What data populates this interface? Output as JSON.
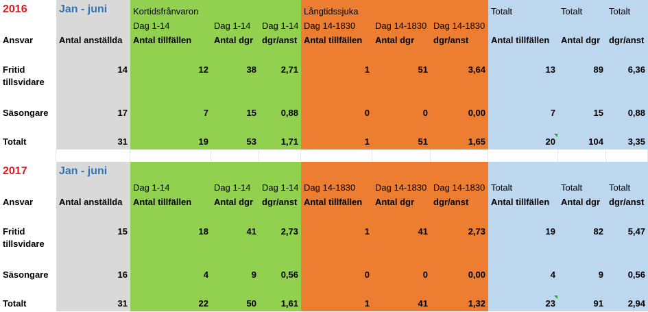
{
  "sections": [
    {
      "year": "2016",
      "period": "Jan - juni",
      "group_headers": {
        "short": "Kortidsfrånvaron",
        "long": "Långtidssjuka",
        "total1": "Totalt",
        "total2": "Totalt",
        "total3": "Totalt"
      },
      "sub_headers": [
        "Dag 1-14",
        "Dag 1-14",
        "Dag 1-14",
        "Dag 14-1830",
        "Dag 14-1830",
        "Dag 14-1830"
      ],
      "columns": [
        "Ansvar",
        "Antal anställda",
        "Antal tillfällen",
        "Antal dgr",
        "dgr/anst",
        "Antal tillfällen",
        "Antal dgr",
        "dgr/anst",
        "Antal tillfällen",
        "Antal dgr",
        "dgr/anst"
      ],
      "rows": [
        {
          "label": [
            "Fritid",
            "tillsvidare"
          ],
          "values": [
            "14",
            "12",
            "38",
            "2,71",
            "1",
            "51",
            "3,64",
            "13",
            "89",
            "6,36"
          ]
        },
        {
          "label": [
            "Säsongare"
          ],
          "values": [
            "17",
            "7",
            "15",
            "0,88",
            "0",
            "0",
            "0,00",
            "7",
            "15",
            "0,88"
          ]
        },
        {
          "label": [
            "Totalt"
          ],
          "values": [
            "31",
            "19",
            "53",
            "1,71",
            "1",
            "51",
            "1,65",
            "20",
            "104",
            "3,35"
          ]
        }
      ]
    },
    {
      "year": "2017",
      "period": "Jan - juni",
      "group_headers": {
        "short": "",
        "long": "",
        "total1": "Totalt",
        "total2": "Totalt",
        "total3": "Totalt"
      },
      "sub_headers": [
        "Dag 1-14",
        "Dag 1-14",
        "Dag 1-14",
        "Dag 14-1830",
        "Dag 14-1830",
        "Dag 14-1830"
      ],
      "columns": [
        "Ansvar",
        "Antal anställda",
        "Antal tillfällen",
        "Antal dgr",
        "dgr/anst",
        "Antal tillfällen",
        "Antal dgr",
        "dgr/anst",
        "Antal tillfällen",
        "Antal dgr",
        "dgr/anst"
      ],
      "rows": [
        {
          "label": [
            "Fritid",
            "tillsvidare"
          ],
          "values": [
            "15",
            "18",
            "41",
            "2,73",
            "1",
            "41",
            "2,73",
            "19",
            "82",
            "5,47"
          ]
        },
        {
          "label": [
            "Säsongare"
          ],
          "values": [
            "16",
            "4",
            "9",
            "0,56",
            "0",
            "0",
            "0,00",
            "4",
            "9",
            "0,56"
          ]
        },
        {
          "label": [
            "Totalt"
          ],
          "values": [
            "31",
            "22",
            "50",
            "1,61",
            "1",
            "41",
            "1,32",
            "23",
            "91",
            "2,94"
          ]
        }
      ]
    }
  ],
  "colors": {
    "grey": "#d9d9d9",
    "green": "#92d050",
    "orange": "#ed7d31",
    "blue": "#bdd7ee",
    "year": "#e8141c",
    "period": "#2e74b5"
  }
}
